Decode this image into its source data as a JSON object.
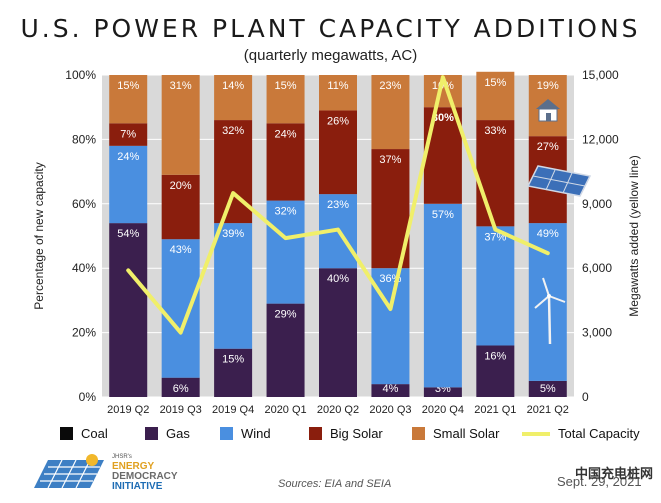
{
  "title": "U.S. POWER PLANT CAPACITY ADDITIONS",
  "subtitle": "(quarterly megawatts, AC)",
  "chart_data": {
    "type": "bar",
    "stacked": true,
    "categories": [
      "2019 Q2",
      "2019 Q3",
      "2019 Q4",
      "2020 Q1",
      "2020 Q2",
      "2020 Q3",
      "2020 Q4",
      "2021 Q1",
      "2021 Q2"
    ],
    "series": [
      {
        "name": "Coal",
        "color": "#0a0a0a",
        "values": [
          0,
          0,
          0,
          0,
          0,
          0,
          0,
          0,
          0
        ]
      },
      {
        "name": "Gas",
        "color": "#3b1f4e",
        "values": [
          54,
          6,
          15,
          29,
          40,
          4,
          3,
          16,
          5
        ]
      },
      {
        "name": "Wind",
        "color": "#4a8fe0",
        "values": [
          24,
          43,
          39,
          32,
          23,
          36,
          57,
          37,
          49
        ]
      },
      {
        "name": "Big Solar",
        "color": "#8a1e0d",
        "values": [
          7,
          20,
          32,
          24,
          26,
          37,
          30,
          33,
          27
        ]
      },
      {
        "name": "Small Solar",
        "color": "#c9793a",
        "values": [
          15,
          31,
          14,
          15,
          11,
          23,
          10,
          15,
          19
        ]
      }
    ],
    "data_labels": [
      {
        "Gas": "54%",
        "Wind": "24%",
        "Big Solar": "7%",
        "Small Solar": "15%"
      },
      {
        "Gas": "6%",
        "Wind": "43%",
        "Big Solar": "20%",
        "Small Solar": "31%"
      },
      {
        "Gas": "15%",
        "Wind": "39%",
        "Big Solar": "32%",
        "Small Solar": "14%"
      },
      {
        "Gas": "29%",
        "Wind": "32%",
        "Big Solar": "24%",
        "Small Solar": "15%"
      },
      {
        "Gas": "40%",
        "Wind": "23%",
        "Big Solar": "26%",
        "Small Solar": "11%"
      },
      {
        "Gas": "4%",
        "Wind": "36%",
        "Big Solar": "37%",
        "Small Solar": "23%"
      },
      {
        "Gas": "3%",
        "Wind": "57%",
        "Big Solar": "30%",
        "Small Solar": "10%"
      },
      {
        "Gas": "16%",
        "Wind": "37%",
        "Big Solar": "33%",
        "Small Solar": "15%"
      },
      {
        "Gas": "5%",
        "Wind": "49%",
        "Big Solar": "27%",
        "Small Solar": "19%"
      }
    ],
    "line": {
      "name": "Total Capacity",
      "color": "#f0ef6a",
      "axis": "right",
      "values": [
        5900,
        3000,
        9500,
        7400,
        7800,
        4100,
        14900,
        7800,
        6700
      ]
    },
    "ylabel": "Percentage of new capacity",
    "ylabel_right": "Megawatts added (yellow line)",
    "ylim": [
      0,
      100
    ],
    "ylim_right": [
      0,
      15000
    ],
    "yticks": [
      "0%",
      "20%",
      "40%",
      "60%",
      "80%",
      "100%"
    ],
    "yticks_right": [
      "0",
      "3,000",
      "6,000",
      "9,000",
      "12,000",
      "15,000"
    ],
    "legend_position": "bottom"
  },
  "legend": {
    "coal": "Coal",
    "gas": "Gas",
    "wind": "Wind",
    "big_solar": "Big Solar",
    "small_solar": "Small Solar",
    "total": "Total Capacity"
  },
  "icons": [
    "house-icon",
    "solar-panel-icon",
    "wind-turbine-icon"
  ],
  "logo": {
    "small": "JHSR's",
    "line1": "ENERGY",
    "line2": "DEMOCRACY",
    "line3": "INITIATIVE"
  },
  "sources": "Sources: EIA and SEIA",
  "date": "Sept. 29, 2021",
  "watermark": "中国充电桩网"
}
